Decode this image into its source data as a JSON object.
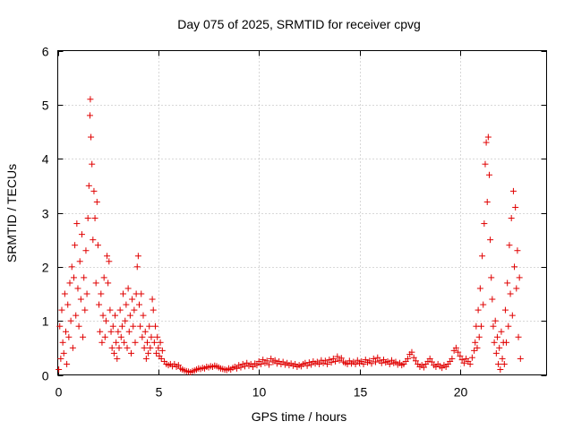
{
  "chart_data": {
    "type": "scatter",
    "title": "Day 075 of 2025, SRMTID for receiver cpvg",
    "xlabel": "GPS time / hours",
    "ylabel": "SRMTID / TECUs",
    "xlim": [
      0,
      24.3
    ],
    "ylim": [
      0,
      6
    ],
    "xticks": [
      0,
      5,
      10,
      15,
      20
    ],
    "yticks": [
      0,
      1,
      2,
      3,
      4,
      5,
      6
    ],
    "grid": true,
    "marker": "+",
    "color": "#e00000",
    "series": [
      {
        "name": "SRMTID",
        "points": [
          [
            0.05,
            0.1
          ],
          [
            0.1,
            0.9
          ],
          [
            0.15,
            0.3
          ],
          [
            0.2,
            1.2
          ],
          [
            0.25,
            0.6
          ],
          [
            0.3,
            0.4
          ],
          [
            0.35,
            1.5
          ],
          [
            0.4,
            0.8
          ],
          [
            0.45,
            0.2
          ],
          [
            0.5,
            1.3
          ],
          [
            0.55,
            0.7
          ],
          [
            0.6,
            1.7
          ],
          [
            0.65,
            1.0
          ],
          [
            0.7,
            2.0
          ],
          [
            0.75,
            0.5
          ],
          [
            0.8,
            1.8
          ],
          [
            0.85,
            2.4
          ],
          [
            0.9,
            1.1
          ],
          [
            0.95,
            2.8
          ],
          [
            1.0,
            1.6
          ],
          [
            1.05,
            0.9
          ],
          [
            1.1,
            2.1
          ],
          [
            1.15,
            1.4
          ],
          [
            1.2,
            2.6
          ],
          [
            1.25,
            0.7
          ],
          [
            1.3,
            1.8
          ],
          [
            1.35,
            1.2
          ],
          [
            1.4,
            2.3
          ],
          [
            1.45,
            1.5
          ],
          [
            1.5,
            2.9
          ],
          [
            1.55,
            3.5
          ],
          [
            1.6,
            4.8
          ],
          [
            1.62,
            5.1
          ],
          [
            1.65,
            4.4
          ],
          [
            1.7,
            3.9
          ],
          [
            1.75,
            2.5
          ],
          [
            1.8,
            3.4
          ],
          [
            1.85,
            2.9
          ],
          [
            1.9,
            1.7
          ],
          [
            1.95,
            3.2
          ],
          [
            2.0,
            2.4
          ],
          [
            2.05,
            1.3
          ],
          [
            2.1,
            0.8
          ],
          [
            2.15,
            1.5
          ],
          [
            2.2,
            0.6
          ],
          [
            2.25,
            1.1
          ],
          [
            2.3,
            1.8
          ],
          [
            2.35,
            0.7
          ],
          [
            2.4,
            1.0
          ],
          [
            2.45,
            2.2
          ],
          [
            2.5,
            1.7
          ],
          [
            2.55,
            2.1
          ],
          [
            2.6,
            1.2
          ],
          [
            2.65,
            0.8
          ],
          [
            2.7,
            0.5
          ],
          [
            2.75,
            0.9
          ],
          [
            2.8,
            0.4
          ],
          [
            2.85,
            1.1
          ],
          [
            2.9,
            0.6
          ],
          [
            2.95,
            0.3
          ],
          [
            3.0,
            0.8
          ],
          [
            3.05,
            0.5
          ],
          [
            3.1,
            1.2
          ],
          [
            3.15,
            0.7
          ],
          [
            3.2,
            0.9
          ],
          [
            3.25,
            1.5
          ],
          [
            3.3,
            0.6
          ],
          [
            3.35,
            1.0
          ],
          [
            3.4,
            1.3
          ],
          [
            3.45,
            0.5
          ],
          [
            3.5,
            1.6
          ],
          [
            3.55,
            0.8
          ],
          [
            3.6,
            1.1
          ],
          [
            3.65,
            0.4
          ],
          [
            3.7,
            1.4
          ],
          [
            3.75,
            0.9
          ],
          [
            3.8,
            1.2
          ],
          [
            3.85,
            0.6
          ],
          [
            3.9,
            1.5
          ],
          [
            3.95,
            2.0
          ],
          [
            4.0,
            2.2
          ],
          [
            4.05,
            1.3
          ],
          [
            4.1,
            0.9
          ],
          [
            4.15,
            1.5
          ],
          [
            4.2,
            0.7
          ],
          [
            4.25,
            1.1
          ],
          [
            4.3,
            0.5
          ],
          [
            4.35,
            0.8
          ],
          [
            4.4,
            0.3
          ],
          [
            4.45,
            0.6
          ],
          [
            4.5,
            0.4
          ],
          [
            4.55,
            0.9
          ],
          [
            4.6,
            0.5
          ],
          [
            4.65,
            0.7
          ],
          [
            4.7,
            1.4
          ],
          [
            4.75,
            1.2
          ],
          [
            4.8,
            0.6
          ],
          [
            4.85,
            0.9
          ],
          [
            4.9,
            0.4
          ],
          [
            4.95,
            0.7
          ],
          [
            5.0,
            0.5
          ],
          [
            5.05,
            0.35
          ],
          [
            5.1,
            0.6
          ],
          [
            5.15,
            0.3
          ],
          [
            5.2,
            0.45
          ],
          [
            5.3,
            0.25
          ],
          [
            5.4,
            0.2
          ],
          [
            5.5,
            0.18
          ],
          [
            5.6,
            0.2
          ],
          [
            5.7,
            0.16
          ],
          [
            5.8,
            0.2
          ],
          [
            5.9,
            0.15
          ],
          [
            6.0,
            0.18
          ],
          [
            6.1,
            0.12
          ],
          [
            6.2,
            0.1
          ],
          [
            6.3,
            0.08
          ],
          [
            6.4,
            0.07
          ],
          [
            6.5,
            0.06
          ],
          [
            6.6,
            0.05
          ],
          [
            6.7,
            0.07
          ],
          [
            6.8,
            0.08
          ],
          [
            6.9,
            0.1
          ],
          [
            7.0,
            0.12
          ],
          [
            7.1,
            0.11
          ],
          [
            7.2,
            0.13
          ],
          [
            7.3,
            0.12
          ],
          [
            7.4,
            0.15
          ],
          [
            7.5,
            0.14
          ],
          [
            7.6,
            0.16
          ],
          [
            7.7,
            0.15
          ],
          [
            7.8,
            0.17
          ],
          [
            7.9,
            0.16
          ],
          [
            8.0,
            0.14
          ],
          [
            8.1,
            0.12
          ],
          [
            8.2,
            0.11
          ],
          [
            8.3,
            0.1
          ],
          [
            8.4,
            0.09
          ],
          [
            8.5,
            0.12
          ],
          [
            8.6,
            0.1
          ],
          [
            8.7,
            0.13
          ],
          [
            8.8,
            0.15
          ],
          [
            8.9,
            0.12
          ],
          [
            9.0,
            0.18
          ],
          [
            9.1,
            0.14
          ],
          [
            9.2,
            0.2
          ],
          [
            9.3,
            0.16
          ],
          [
            9.4,
            0.22
          ],
          [
            9.5,
            0.17
          ],
          [
            9.6,
            0.2
          ],
          [
            9.7,
            0.15
          ],
          [
            9.8,
            0.21
          ],
          [
            9.9,
            0.18
          ],
          [
            10.0,
            0.25
          ],
          [
            10.1,
            0.2
          ],
          [
            10.2,
            0.28
          ],
          [
            10.3,
            0.22
          ],
          [
            10.4,
            0.26
          ],
          [
            10.5,
            0.19
          ],
          [
            10.6,
            0.3
          ],
          [
            10.7,
            0.24
          ],
          [
            10.8,
            0.27
          ],
          [
            10.9,
            0.21
          ],
          [
            11.0,
            0.25
          ],
          [
            11.1,
            0.2
          ],
          [
            11.2,
            0.24
          ],
          [
            11.3,
            0.19
          ],
          [
            11.4,
            0.22
          ],
          [
            11.5,
            0.18
          ],
          [
            11.6,
            0.21
          ],
          [
            11.7,
            0.17
          ],
          [
            11.8,
            0.2
          ],
          [
            11.9,
            0.15
          ],
          [
            12.0,
            0.18
          ],
          [
            12.1,
            0.16
          ],
          [
            12.2,
            0.2
          ],
          [
            12.3,
            0.22
          ],
          [
            12.4,
            0.17
          ],
          [
            12.5,
            0.23
          ],
          [
            12.6,
            0.19
          ],
          [
            12.7,
            0.25
          ],
          [
            12.8,
            0.21
          ],
          [
            12.9,
            0.24
          ],
          [
            13.0,
            0.2
          ],
          [
            13.1,
            0.27
          ],
          [
            13.2,
            0.22
          ],
          [
            13.3,
            0.26
          ],
          [
            13.4,
            0.2
          ],
          [
            13.5,
            0.28
          ],
          [
            13.6,
            0.23
          ],
          [
            13.7,
            0.3
          ],
          [
            13.8,
            0.25
          ],
          [
            13.9,
            0.34
          ],
          [
            14.0,
            0.27
          ],
          [
            14.1,
            0.31
          ],
          [
            14.2,
            0.24
          ],
          [
            14.3,
            0.22
          ],
          [
            14.4,
            0.2
          ],
          [
            14.5,
            0.26
          ],
          [
            14.6,
            0.21
          ],
          [
            14.7,
            0.24
          ],
          [
            14.8,
            0.2
          ],
          [
            14.9,
            0.27
          ],
          [
            15.0,
            0.22
          ],
          [
            15.1,
            0.25
          ],
          [
            15.2,
            0.2
          ],
          [
            15.3,
            0.28
          ],
          [
            15.4,
            0.23
          ],
          [
            15.5,
            0.26
          ],
          [
            15.6,
            0.21
          ],
          [
            15.7,
            0.3
          ],
          [
            15.8,
            0.24
          ],
          [
            15.9,
            0.32
          ],
          [
            16.0,
            0.26
          ],
          [
            16.1,
            0.22
          ],
          [
            16.2,
            0.28
          ],
          [
            16.3,
            0.23
          ],
          [
            16.4,
            0.25
          ],
          [
            16.5,
            0.2
          ],
          [
            16.6,
            0.27
          ],
          [
            16.7,
            0.22
          ],
          [
            16.8,
            0.24
          ],
          [
            16.9,
            0.19
          ],
          [
            17.0,
            0.22
          ],
          [
            17.1,
            0.18
          ],
          [
            17.2,
            0.2
          ],
          [
            17.3,
            0.25
          ],
          [
            17.4,
            0.3
          ],
          [
            17.5,
            0.38
          ],
          [
            17.6,
            0.42
          ],
          [
            17.7,
            0.32
          ],
          [
            17.8,
            0.26
          ],
          [
            17.9,
            0.2
          ],
          [
            18.0,
            0.15
          ],
          [
            18.1,
            0.18
          ],
          [
            18.2,
            0.14
          ],
          [
            18.3,
            0.2
          ],
          [
            18.4,
            0.25
          ],
          [
            18.5,
            0.3
          ],
          [
            18.6,
            0.24
          ],
          [
            18.7,
            0.18
          ],
          [
            18.8,
            0.15
          ],
          [
            18.9,
            0.2
          ],
          [
            19.0,
            0.16
          ],
          [
            19.1,
            0.13
          ],
          [
            19.2,
            0.18
          ],
          [
            19.3,
            0.15
          ],
          [
            19.4,
            0.2
          ],
          [
            19.5,
            0.25
          ],
          [
            19.6,
            0.3
          ],
          [
            19.7,
            0.45
          ],
          [
            19.8,
            0.5
          ],
          [
            19.9,
            0.42
          ],
          [
            20.0,
            0.35
          ],
          [
            20.1,
            0.28
          ],
          [
            20.2,
            0.22
          ],
          [
            20.3,
            0.3
          ],
          [
            20.4,
            0.25
          ],
          [
            20.5,
            0.2
          ],
          [
            20.6,
            0.32
          ],
          [
            20.7,
            0.45
          ],
          [
            20.75,
            0.6
          ],
          [
            20.8,
            0.9
          ],
          [
            20.85,
            0.5
          ],
          [
            20.9,
            1.2
          ],
          [
            20.95,
            0.7
          ],
          [
            21.0,
            1.6
          ],
          [
            21.05,
            0.9
          ],
          [
            21.1,
            2.2
          ],
          [
            21.15,
            1.3
          ],
          [
            21.2,
            2.8
          ],
          [
            21.25,
            3.9
          ],
          [
            21.3,
            4.3
          ],
          [
            21.35,
            3.2
          ],
          [
            21.4,
            4.4
          ],
          [
            21.45,
            3.7
          ],
          [
            21.5,
            2.5
          ],
          [
            21.55,
            1.8
          ],
          [
            21.6,
            1.4
          ],
          [
            21.65,
            0.9
          ],
          [
            21.7,
            0.6
          ],
          [
            21.75,
            1.0
          ],
          [
            21.8,
            0.4
          ],
          [
            21.85,
            0.7
          ],
          [
            21.9,
            0.2
          ],
          [
            21.95,
            0.5
          ],
          [
            22.0,
            0.1
          ],
          [
            22.05,
            0.8
          ],
          [
            22.1,
            0.3
          ],
          [
            22.15,
            0.6
          ],
          [
            22.2,
            0.2
          ],
          [
            22.25,
            1.2
          ],
          [
            22.3,
            0.6
          ],
          [
            22.35,
            1.7
          ],
          [
            22.4,
            0.9
          ],
          [
            22.45,
            2.4
          ],
          [
            22.5,
            1.5
          ],
          [
            22.55,
            2.9
          ],
          [
            22.6,
            1.1
          ],
          [
            22.65,
            3.4
          ],
          [
            22.7,
            2.0
          ],
          [
            22.75,
            3.1
          ],
          [
            22.8,
            1.6
          ],
          [
            22.85,
            2.3
          ],
          [
            22.9,
            0.7
          ],
          [
            22.95,
            1.8
          ],
          [
            23.0,
            0.3
          ]
        ]
      }
    ]
  }
}
